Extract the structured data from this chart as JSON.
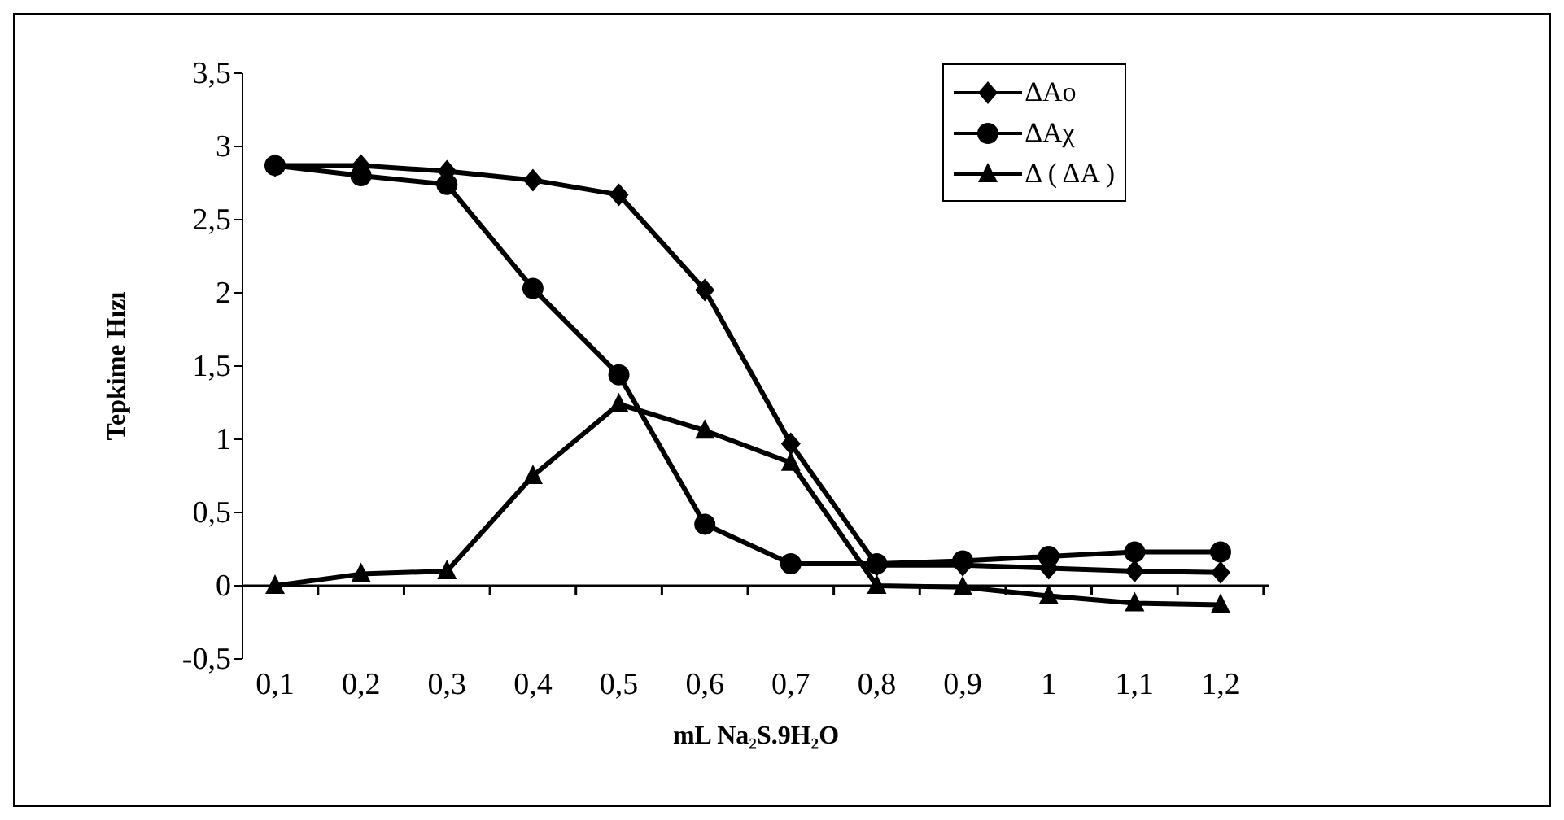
{
  "chart_data": {
    "type": "line",
    "xlabel": "mL Na₂S.9H₂O",
    "ylabel": "Tepkime Hızı",
    "categories": [
      "0,1",
      "0,2",
      "0,3",
      "0,4",
      "0,5",
      "0,6",
      "0,7",
      "0,8",
      "0,9",
      "1",
      "1,1",
      "1,2"
    ],
    "series": [
      {
        "name": "ΔAo",
        "color": "#000000",
        "marker": "diamond",
        "values": [
          2.87,
          2.87,
          2.83,
          2.77,
          2.67,
          2.02,
          0.97,
          0.14,
          0.14,
          0.12,
          0.1,
          0.09
        ]
      },
      {
        "name": "ΔAχ",
        "color": "#000000",
        "marker": "circle",
        "values": [
          2.87,
          2.8,
          2.74,
          2.03,
          1.44,
          0.42,
          0.15,
          0.15,
          0.17,
          0.2,
          0.23,
          0.23
        ]
      },
      {
        "name": "Δ ( ΔA )",
        "color": "#000000",
        "marker": "triangle",
        "values": [
          0,
          0.08,
          0.1,
          0.75,
          1.24,
          1.06,
          0.84,
          0,
          -0.01,
          -0.07,
          -0.12,
          -0.13
        ]
      }
    ],
    "ylim": [
      -0.5,
      3.5
    ],
    "yticks": [
      {
        "value": -0.5,
        "label": "-0,5"
      },
      0,
      {
        "value": 0.5,
        "label": "0,5"
      },
      1,
      {
        "value": 1.5,
        "label": "1,5"
      },
      2,
      {
        "value": 2.5,
        "label": "2,5"
      },
      3,
      {
        "value": 3.5,
        "label": "3,5"
      }
    ],
    "legend": "top right",
    "line_style": "solid"
  }
}
